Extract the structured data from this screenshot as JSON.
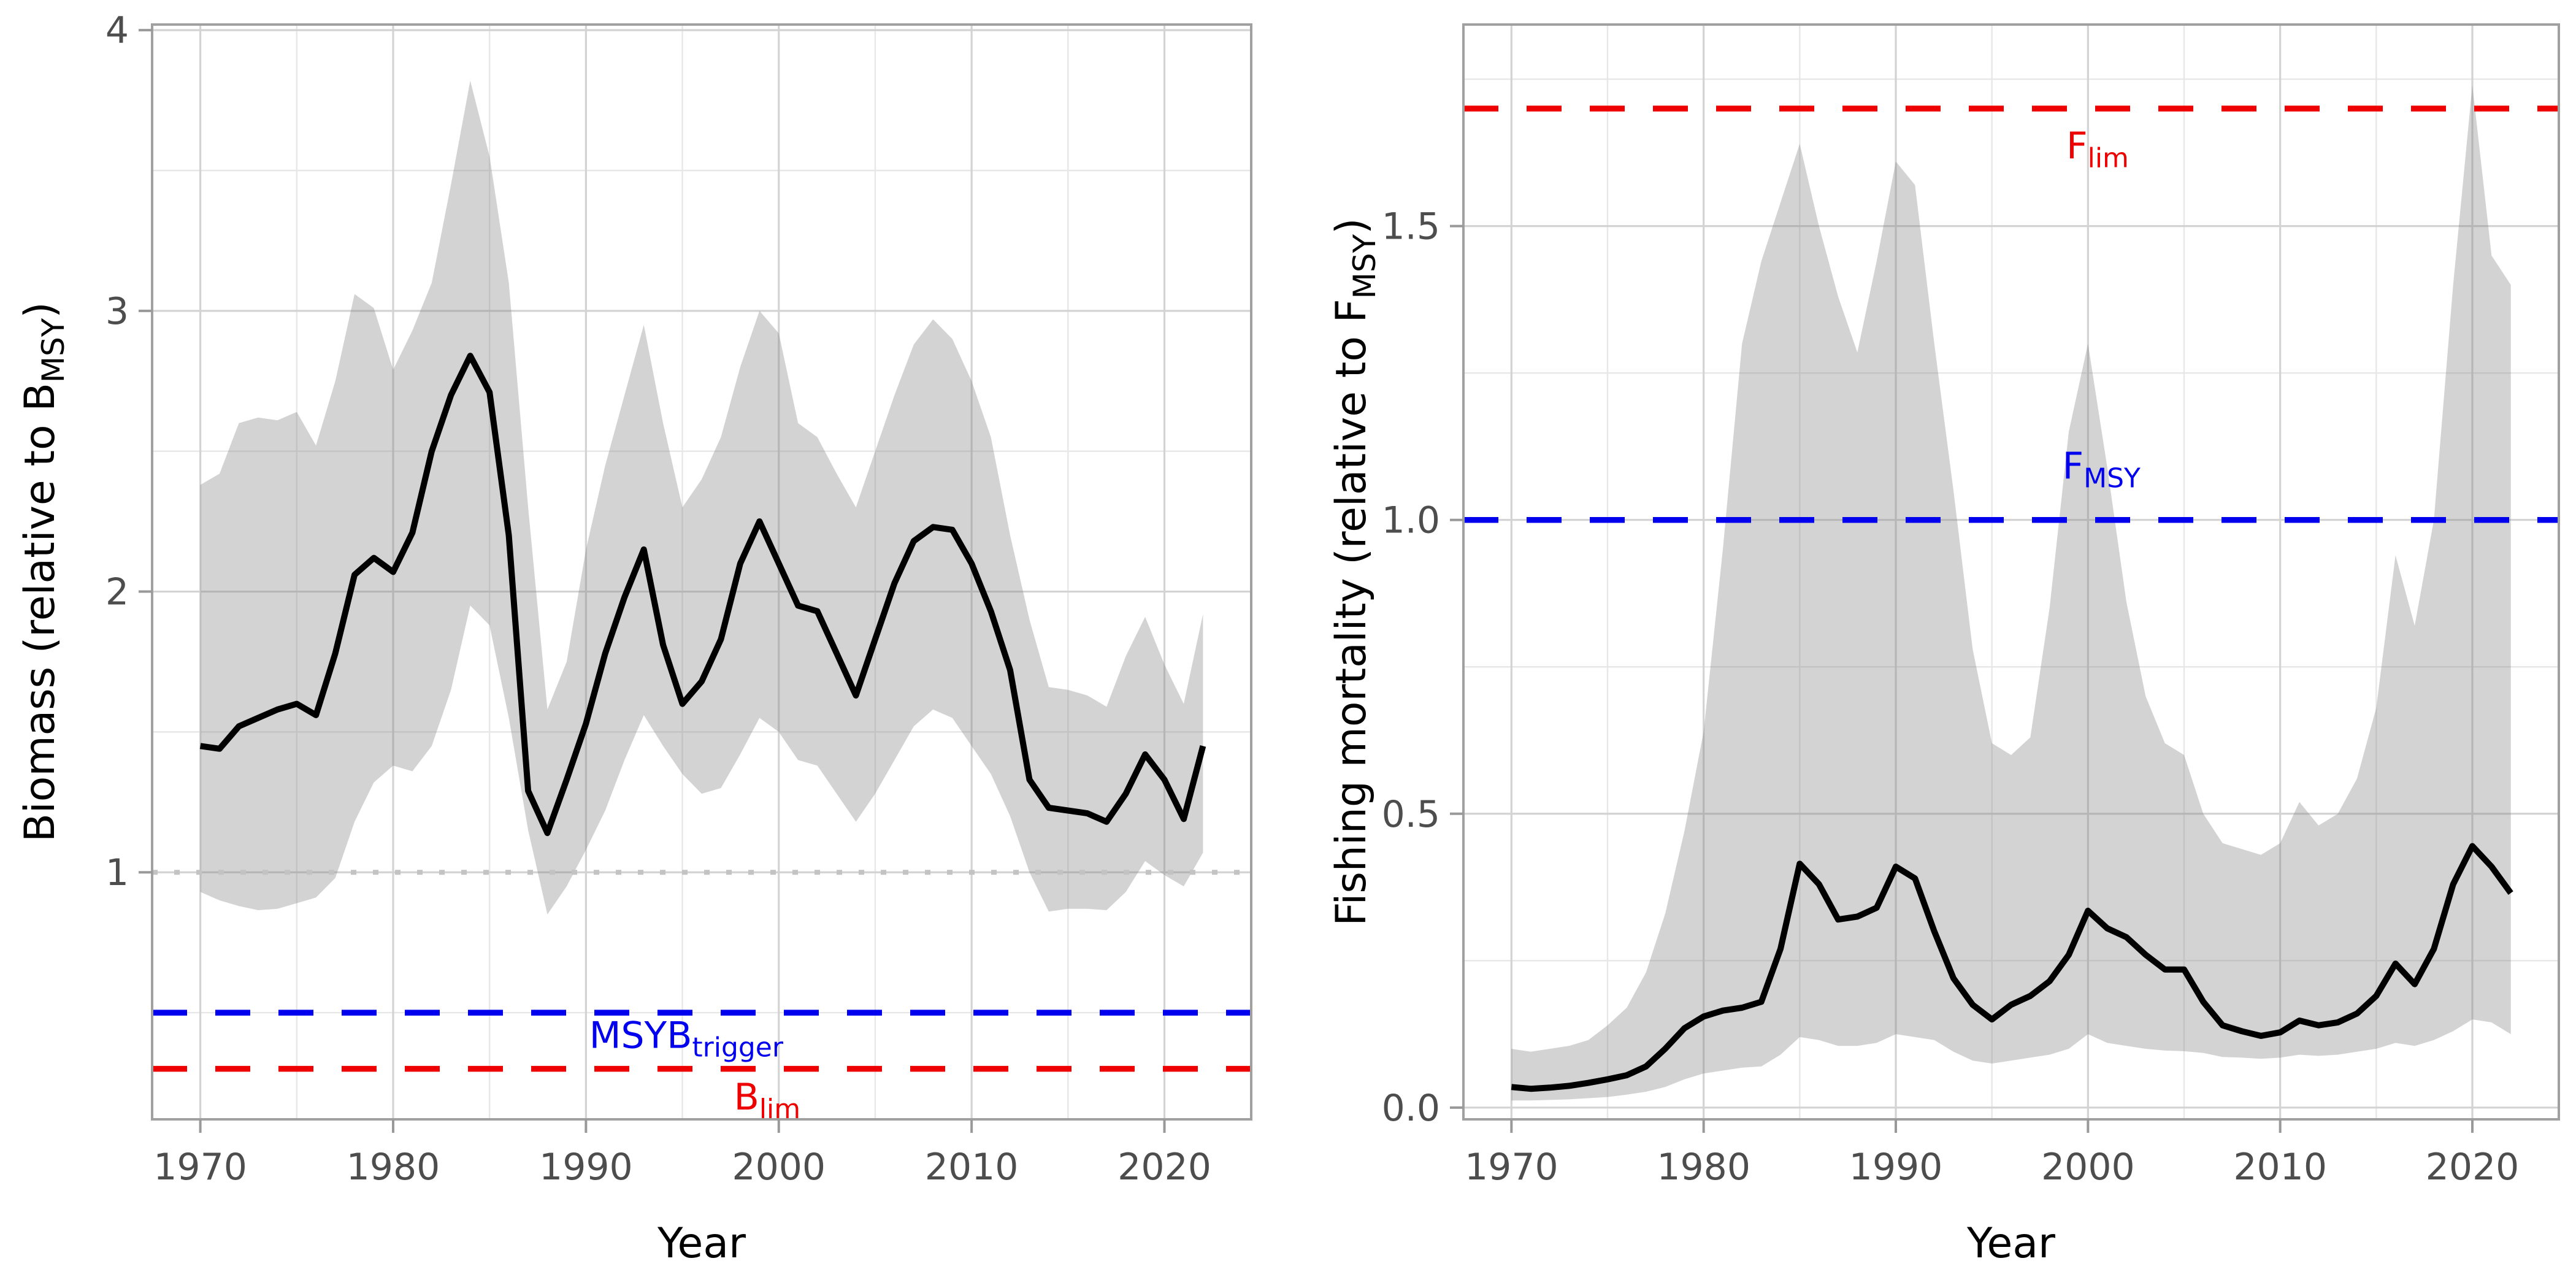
{
  "figure": {
    "background": "#ffffff",
    "description": "Two-panel stock assessment status plot: relative biomass and relative fishing mortality time series with uncertainty ribbons and reference lines"
  },
  "style": {
    "median_line_color": "#000000",
    "ribbon_fill": "rgba(125,125,125,0.34)",
    "grid_major_color": "#d3d3d3",
    "grid_minor_color": "#e7e7e7",
    "panel_border_color": "#a0a0a0",
    "tick_mark_color": "#999999",
    "tick_label_color": "#4d4d4d",
    "axis_title_color": "#000000",
    "dotted_reference_color": "#c3c3c3",
    "blue_reference_color": "#0000ee",
    "red_reference_color": "#ee0000"
  },
  "chart_data": {
    "type": "line",
    "x": [
      1970,
      1971,
      1972,
      1973,
      1974,
      1975,
      1976,
      1977,
      1978,
      1979,
      1980,
      1981,
      1982,
      1983,
      1984,
      1985,
      1986,
      1987,
      1988,
      1989,
      1990,
      1991,
      1992,
      1993,
      1994,
      1995,
      1996,
      1997,
      1998,
      1999,
      2000,
      2001,
      2002,
      2003,
      2004,
      2005,
      2006,
      2007,
      2008,
      2009,
      2010,
      2011,
      2012,
      2013,
      2014,
      2015,
      2016,
      2017,
      2018,
      2019,
      2020,
      2021,
      2022
    ],
    "panels": [
      {
        "id": "biomass",
        "ylabel_main": "Biomass (relative to B",
        "ylabel_sub": "MSY",
        "ylabel_end": ")",
        "xlabel": "Year",
        "xlim": [
          1967.5,
          2024.5
        ],
        "ylim": [
          0.12,
          4.02
        ],
        "yticks": [
          1,
          2,
          3,
          4
        ],
        "ytick_labels": [
          "1",
          "2",
          "3",
          "4"
        ],
        "yticks_minor": [
          0.5,
          1.5,
          2.5,
          3.5
        ],
        "xticks": [
          1970,
          1980,
          1990,
          2000,
          2010,
          2020
        ],
        "xtick_labels": [
          "1970",
          "1980",
          "1990",
          "2000",
          "2010",
          "2020"
        ],
        "xticks_minor": [
          1975,
          1985,
          1995,
          2005,
          2015
        ],
        "grid": true,
        "legend": "none",
        "dotted_hline": 1.0,
        "series": [
          {
            "name": "median",
            "values": [
              1.45,
              1.44,
              1.52,
              1.55,
              1.58,
              1.6,
              1.56,
              1.78,
              2.06,
              2.12,
              2.07,
              2.21,
              2.5,
              2.7,
              2.84,
              2.71,
              2.2,
              1.29,
              1.14,
              1.33,
              1.53,
              1.78,
              1.98,
              2.15,
              1.81,
              1.6,
              1.68,
              1.83,
              2.1,
              2.25,
              2.1,
              1.95,
              1.93,
              1.78,
              1.63,
              1.83,
              2.03,
              2.18,
              2.23,
              2.22,
              2.1,
              1.93,
              1.72,
              1.33,
              1.23,
              1.22,
              1.21,
              1.18,
              1.28,
              1.42,
              1.33,
              1.19,
              1.45
            ]
          },
          {
            "name": "lower95",
            "values": [
              0.93,
              0.9,
              0.88,
              0.865,
              0.87,
              0.89,
              0.91,
              0.98,
              1.18,
              1.32,
              1.38,
              1.36,
              1.45,
              1.65,
              1.95,
              1.88,
              1.55,
              1.15,
              0.85,
              0.95,
              1.08,
              1.22,
              1.4,
              1.56,
              1.45,
              1.35,
              1.28,
              1.3,
              1.42,
              1.55,
              1.5,
              1.4,
              1.38,
              1.28,
              1.18,
              1.28,
              1.4,
              1.52,
              1.58,
              1.55,
              1.45,
              1.35,
              1.2,
              1.0,
              0.86,
              0.87,
              0.87,
              0.865,
              0.93,
              1.04,
              0.99,
              0.95,
              1.07
            ]
          },
          {
            "name": "upper95",
            "values": [
              2.38,
              2.42,
              2.6,
              2.62,
              2.61,
              2.64,
              2.52,
              2.75,
              3.06,
              3.01,
              2.79,
              2.93,
              3.1,
              3.45,
              3.82,
              3.55,
              3.1,
              2.3,
              1.58,
              1.75,
              2.15,
              2.45,
              2.7,
              2.95,
              2.6,
              2.3,
              2.4,
              2.55,
              2.8,
              3.0,
              2.92,
              2.6,
              2.55,
              2.42,
              2.3,
              2.5,
              2.7,
              2.88,
              2.97,
              2.9,
              2.75,
              2.55,
              2.2,
              1.9,
              1.66,
              1.65,
              1.63,
              1.59,
              1.77,
              1.91,
              1.74,
              1.6,
              1.92
            ]
          }
        ],
        "ref_lines": [
          {
            "value": 0.5,
            "color": "#0000ee",
            "label_main": "MSYB",
            "label_sub": "trigger",
            "label_x": 1995.2,
            "label_y": 0.375
          },
          {
            "value": 0.3,
            "color": "#ee0000",
            "label_main": "B",
            "label_sub": "lim",
            "label_x": 1999.4,
            "label_y": 0.155
          }
        ]
      },
      {
        "id": "fishing-mortality",
        "ylabel_main": "Fishing mortality (relative to F",
        "ylabel_sub": "MSY",
        "ylabel_end": ")",
        "xlabel": "Year",
        "xlim": [
          1967.5,
          2024.5
        ],
        "ylim": [
          -0.02,
          1.843
        ],
        "yticks": [
          0,
          0.5,
          1,
          1.5
        ],
        "ytick_labels": [
          "0.0",
          "0.5",
          "1.0",
          "1.5"
        ],
        "yticks_minor": [
          0.25,
          0.75,
          1.25,
          1.75
        ],
        "xticks": [
          1970,
          1980,
          1990,
          2000,
          2010,
          2020
        ],
        "xtick_labels": [
          "1970",
          "1980",
          "1990",
          "2000",
          "2010",
          "2020"
        ],
        "xticks_minor": [
          1975,
          1985,
          1995,
          2005,
          2015
        ],
        "grid": true,
        "legend": "none",
        "dotted_hline": null,
        "series": [
          {
            "name": "median",
            "values": [
              0.035,
              0.032,
              0.034,
              0.037,
              0.042,
              0.048,
              0.055,
              0.07,
              0.1,
              0.135,
              0.155,
              0.165,
              0.17,
              0.18,
              0.27,
              0.415,
              0.38,
              0.32,
              0.325,
              0.34,
              0.41,
              0.39,
              0.3,
              0.22,
              0.175,
              0.15,
              0.175,
              0.19,
              0.215,
              0.26,
              0.335,
              0.305,
              0.29,
              0.26,
              0.235,
              0.235,
              0.18,
              0.14,
              0.13,
              0.122,
              0.128,
              0.148,
              0.14,
              0.145,
              0.16,
              0.19,
              0.245,
              0.21,
              0.27,
              0.38,
              0.445,
              0.41,
              0.365
            ]
          },
          {
            "name": "lower95",
            "values": [
              0.012,
              0.012,
              0.013,
              0.014,
              0.016,
              0.018,
              0.022,
              0.027,
              0.035,
              0.048,
              0.058,
              0.063,
              0.068,
              0.07,
              0.09,
              0.12,
              0.115,
              0.105,
              0.105,
              0.11,
              0.125,
              0.12,
              0.115,
              0.095,
              0.08,
              0.075,
              0.08,
              0.085,
              0.09,
              0.1,
              0.125,
              0.11,
              0.105,
              0.1,
              0.097,
              0.096,
              0.093,
              0.086,
              0.085,
              0.083,
              0.085,
              0.09,
              0.088,
              0.09,
              0.095,
              0.1,
              0.11,
              0.105,
              0.115,
              0.13,
              0.15,
              0.145,
              0.125
            ]
          },
          {
            "name": "upper95",
            "values": [
              0.1,
              0.095,
              0.1,
              0.105,
              0.115,
              0.14,
              0.17,
              0.23,
              0.33,
              0.47,
              0.64,
              0.95,
              1.3,
              1.44,
              1.54,
              1.64,
              1.5,
              1.38,
              1.285,
              1.44,
              1.61,
              1.57,
              1.3,
              1.05,
              0.78,
              0.62,
              0.6,
              0.63,
              0.85,
              1.15,
              1.3,
              1.09,
              0.86,
              0.7,
              0.62,
              0.6,
              0.5,
              0.45,
              0.44,
              0.43,
              0.45,
              0.52,
              0.48,
              0.5,
              0.56,
              0.68,
              0.94,
              0.82,
              1.0,
              1.4,
              1.74,
              1.45,
              1.4
            ]
          }
        ],
        "ref_lines": [
          {
            "value": 1.7,
            "color": "#ee0000",
            "label_main": "F",
            "label_sub": "lim",
            "label_x": 2000.5,
            "label_y": 1.615
          },
          {
            "value": 1.0,
            "color": "#0000ee",
            "label_main": "F",
            "label_sub": "MSY",
            "label_x": 2000.7,
            "label_y": 1.07
          }
        ]
      }
    ]
  }
}
